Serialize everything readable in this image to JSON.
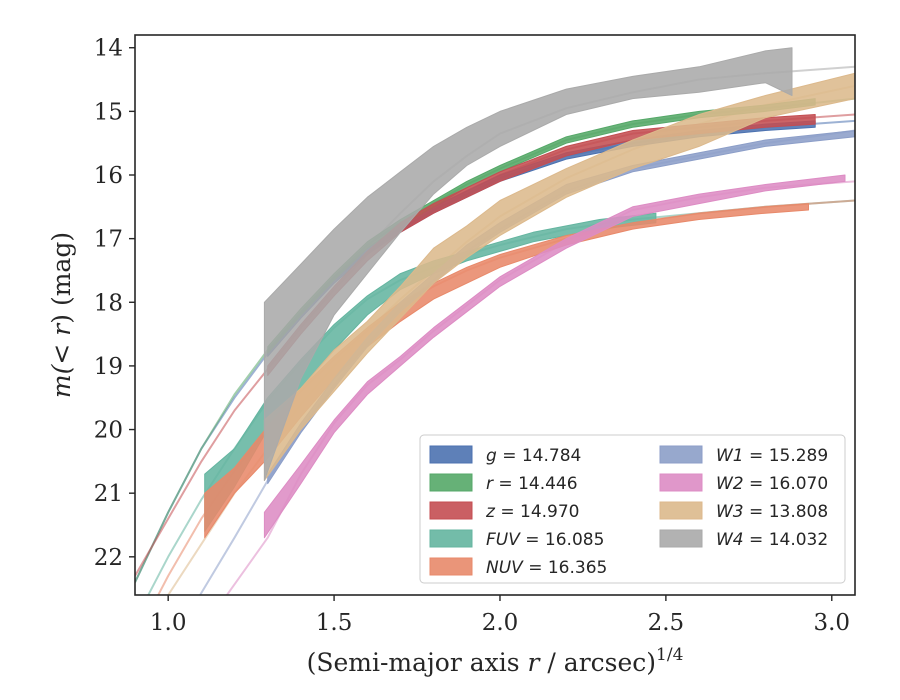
{
  "chart_data": {
    "type": "line",
    "xlabel_prefix": "(Semi-major axis",
    "xlabel_var": "r",
    "xlabel_unit": "/ arcsec)",
    "xlabel_power": "1/4",
    "ylabel_prefix": "m(",
    "ylabel_var": "< r",
    "ylabel_suffix": ") (mag)",
    "xlim": [
      0.9,
      3.07
    ],
    "ylim": [
      22.6,
      13.8
    ],
    "y_inverted": true,
    "xticks": [
      1.0,
      1.5,
      2.0,
      2.5,
      3.0
    ],
    "xtick_labels": [
      "1.0",
      "1.5",
      "2.0",
      "2.5",
      "3.0"
    ],
    "yticks": [
      14,
      15,
      16,
      17,
      18,
      19,
      20,
      21,
      22
    ],
    "ytick_labels": [
      "14",
      "15",
      "16",
      "17",
      "18",
      "19",
      "20",
      "21",
      "22"
    ],
    "grid": false,
    "legend_position": "bottom-right",
    "legend_columns": 2,
    "series": [
      {
        "name": "g",
        "total": "14.784",
        "color": "#4c72b0",
        "model_x": [
          0.9,
          1.0,
          1.1,
          1.2,
          1.3,
          1.4,
          1.5,
          1.6,
          1.7,
          1.8,
          1.9,
          2.0,
          2.2,
          2.4,
          2.6,
          2.8,
          3.07
        ],
        "model_y": [
          22.4,
          21.3,
          20.3,
          19.5,
          18.8,
          18.2,
          17.65,
          17.2,
          16.85,
          16.55,
          16.3,
          16.05,
          15.7,
          15.5,
          15.35,
          15.25,
          15.15
        ],
        "band_x": [
          1.3,
          1.4,
          1.5,
          1.6,
          1.7,
          1.8,
          1.9,
          2.0,
          2.2,
          2.4,
          2.6,
          2.8,
          2.95
        ],
        "band_low": [
          18.75,
          18.15,
          17.6,
          17.15,
          16.8,
          16.5,
          16.25,
          16.0,
          15.65,
          15.45,
          15.3,
          15.2,
          15.15
        ],
        "band_high": [
          18.85,
          18.25,
          17.7,
          17.25,
          16.9,
          16.6,
          16.35,
          16.1,
          15.75,
          15.55,
          15.4,
          15.3,
          15.25
        ]
      },
      {
        "name": "r",
        "total": "14.446",
        "color": "#55a868",
        "model_x": [
          0.9,
          1.0,
          1.1,
          1.2,
          1.3,
          1.4,
          1.5,
          1.6,
          1.7,
          1.8,
          1.9,
          2.0,
          2.2,
          2.4,
          2.6,
          2.8,
          3.07
        ],
        "model_y": [
          22.4,
          21.3,
          20.3,
          19.45,
          18.75,
          18.15,
          17.6,
          17.1,
          16.75,
          16.45,
          16.15,
          15.9,
          15.45,
          15.2,
          15.05,
          14.95,
          14.8
        ],
        "band_x": [
          1.3,
          1.4,
          1.5,
          1.6,
          1.7,
          1.8,
          1.9,
          2.0,
          2.2,
          2.4,
          2.6,
          2.8,
          2.95
        ],
        "band_low": [
          18.7,
          18.1,
          17.55,
          17.05,
          16.7,
          16.4,
          16.1,
          15.85,
          15.4,
          15.15,
          15.0,
          14.9,
          14.8
        ],
        "band_high": [
          18.8,
          18.2,
          17.65,
          17.15,
          16.8,
          16.5,
          16.2,
          15.95,
          15.5,
          15.25,
          15.1,
          15.0,
          14.9
        ]
      },
      {
        "name": "z",
        "total": "14.970",
        "color": "#c44e52",
        "model_x": [
          0.9,
          1.0,
          1.1,
          1.2,
          1.3,
          1.4,
          1.5,
          1.6,
          1.7,
          1.8,
          1.9,
          2.0,
          2.2,
          2.4,
          2.6,
          2.8,
          3.07
        ],
        "model_y": [
          22.3,
          21.4,
          20.5,
          19.7,
          19.05,
          18.4,
          17.8,
          17.25,
          16.8,
          16.5,
          16.25,
          16.0,
          15.6,
          15.35,
          15.25,
          15.15,
          15.05
        ],
        "band_x": [
          1.3,
          1.4,
          1.5,
          1.6,
          1.7,
          1.8,
          1.9,
          2.0,
          2.2,
          2.4,
          2.6,
          2.8,
          2.95
        ],
        "band_low": [
          19.0,
          18.35,
          17.75,
          17.2,
          16.75,
          16.45,
          16.2,
          15.95,
          15.55,
          15.3,
          15.2,
          15.1,
          15.05
        ],
        "band_high": [
          19.15,
          18.5,
          17.9,
          17.35,
          16.9,
          16.6,
          16.35,
          16.1,
          15.7,
          15.45,
          15.35,
          15.25,
          15.2
        ]
      },
      {
        "name": "FUV",
        "total": "16.085",
        "color": "#64b5a0",
        "model_x": [
          0.9,
          1.0,
          1.1,
          1.2,
          1.3,
          1.4,
          1.5,
          1.6,
          1.7,
          1.8,
          1.9,
          2.0,
          2.2,
          2.4,
          2.6,
          2.8,
          3.07
        ],
        "model_y": [
          23.0,
          22.0,
          21.1,
          20.3,
          19.55,
          18.95,
          18.4,
          17.95,
          17.65,
          17.45,
          17.25,
          17.1,
          16.85,
          16.7,
          16.6,
          16.5,
          16.4
        ],
        "band_x": [
          1.11,
          1.2,
          1.3,
          1.4,
          1.5,
          1.6,
          1.7,
          1.8,
          1.9,
          2.0,
          2.1,
          2.2,
          2.3,
          2.47
        ],
        "band_low": [
          20.7,
          20.3,
          19.5,
          18.9,
          18.35,
          17.9,
          17.55,
          17.35,
          17.2,
          17.05,
          16.9,
          16.8,
          16.7,
          16.6
        ],
        "band_high": [
          21.6,
          20.9,
          20.0,
          19.35,
          18.75,
          18.2,
          17.8,
          17.55,
          17.35,
          17.2,
          17.05,
          16.95,
          16.85,
          16.75
        ]
      },
      {
        "name": "NUV",
        "total": "16.365",
        "color": "#e8896a",
        "model_x": [
          0.9,
          1.0,
          1.1,
          1.2,
          1.3,
          1.4,
          1.5,
          1.6,
          1.7,
          1.8,
          1.9,
          2.0,
          2.2,
          2.4,
          2.6,
          2.8,
          3.07
        ],
        "model_y": [
          23.3,
          22.3,
          21.4,
          20.65,
          20.0,
          19.4,
          18.9,
          18.45,
          18.05,
          17.75,
          17.5,
          17.3,
          17.0,
          16.75,
          16.6,
          16.5,
          16.4
        ],
        "band_x": [
          1.11,
          1.2,
          1.3,
          1.4,
          1.5,
          1.6,
          1.7,
          1.8,
          1.9,
          2.0,
          2.2,
          2.4,
          2.6,
          2.8,
          2.93
        ],
        "band_low": [
          21.0,
          20.6,
          19.95,
          19.35,
          18.85,
          18.4,
          18.0,
          17.7,
          17.45,
          17.25,
          16.95,
          16.75,
          16.6,
          16.5,
          16.45
        ],
        "band_high": [
          21.7,
          21.0,
          20.45,
          19.8,
          19.2,
          18.7,
          18.3,
          17.95,
          17.7,
          17.45,
          17.1,
          16.85,
          16.7,
          16.6,
          16.55
        ]
      },
      {
        "name": "W1",
        "total": "15.289",
        "color": "#8c9ec8",
        "model_x": [
          1.05,
          1.2,
          1.3,
          1.4,
          1.5,
          1.6,
          1.7,
          1.8,
          1.9,
          2.0,
          2.2,
          2.4,
          2.6,
          2.8,
          3.07
        ],
        "model_y": [
          23.0,
          21.7,
          20.8,
          20.0,
          19.3,
          18.65,
          18.1,
          17.65,
          17.2,
          16.85,
          16.25,
          15.9,
          15.7,
          15.5,
          15.3
        ],
        "band_x": [
          1.3,
          1.4,
          1.5,
          1.6,
          1.7,
          1.8,
          1.9,
          2.0,
          2.2,
          2.4,
          2.6,
          2.8,
          3.07
        ],
        "band_low": [
          20.7,
          19.9,
          19.2,
          18.55,
          18.0,
          17.55,
          17.1,
          16.75,
          16.15,
          15.85,
          15.65,
          15.45,
          15.3
        ],
        "band_high": [
          20.85,
          20.05,
          19.35,
          18.7,
          18.15,
          17.7,
          17.25,
          16.9,
          16.3,
          15.95,
          15.75,
          15.55,
          15.4
        ]
      },
      {
        "name": "W2",
        "total": "16.070",
        "color": "#dd8cc4",
        "model_x": [
          1.15,
          1.3,
          1.4,
          1.5,
          1.6,
          1.7,
          1.8,
          1.9,
          2.0,
          2.2,
          2.4,
          2.6,
          2.8,
          3.07
        ],
        "model_y": [
          22.8,
          21.7,
          20.7,
          19.9,
          19.3,
          18.9,
          18.45,
          18.05,
          17.65,
          17.05,
          16.55,
          16.35,
          16.2,
          16.1
        ],
        "band_x": [
          1.29,
          1.4,
          1.5,
          1.6,
          1.7,
          1.8,
          1.9,
          2.0,
          2.2,
          2.4,
          2.6,
          2.8,
          3.04
        ],
        "band_low": [
          21.3,
          20.55,
          19.85,
          19.25,
          18.85,
          18.4,
          18.0,
          17.6,
          17.0,
          16.5,
          16.3,
          16.15,
          16.0
        ],
        "band_high": [
          21.7,
          20.85,
          20.05,
          19.45,
          19.0,
          18.55,
          18.15,
          17.75,
          17.15,
          16.65,
          16.45,
          16.25,
          16.1
        ]
      },
      {
        "name": "W3",
        "total": "13.808",
        "color": "#dcb98c",
        "model_x": [
          0.95,
          1.1,
          1.2,
          1.3,
          1.4,
          1.5,
          1.6,
          1.7,
          1.8,
          1.9,
          2.0,
          2.2,
          2.4,
          2.6,
          2.8,
          3.07
        ],
        "model_y": [
          23.0,
          21.8,
          21.0,
          20.3,
          19.6,
          19.0,
          18.45,
          17.95,
          17.5,
          17.05,
          16.65,
          16.05,
          15.6,
          15.2,
          14.9,
          14.6
        ],
        "band_x": [
          1.29,
          1.4,
          1.5,
          1.6,
          1.7,
          1.8,
          1.9,
          2.0,
          2.2,
          2.4,
          2.6,
          2.8,
          3.07
        ],
        "band_low": [
          19.85,
          19.35,
          18.75,
          18.3,
          17.75,
          17.15,
          16.8,
          16.4,
          15.9,
          15.45,
          15.05,
          14.75,
          14.4
        ],
        "band_high": [
          20.8,
          20.0,
          19.4,
          18.8,
          18.25,
          17.7,
          17.3,
          16.95,
          16.35,
          15.9,
          15.55,
          15.1,
          14.8
        ]
      },
      {
        "name": "W4",
        "total": "14.032",
        "color": "#aaaaaa",
        "model_x": [
          1.55,
          1.7,
          1.8,
          1.9,
          2.0,
          2.2,
          2.4,
          2.6,
          2.8,
          3.07
        ],
        "model_y": [
          17.4,
          16.6,
          16.1,
          15.7,
          15.35,
          14.95,
          14.7,
          14.5,
          14.4,
          14.3
        ],
        "band_x": [
          1.29,
          1.4,
          1.5,
          1.6,
          1.7,
          1.8,
          1.9,
          2.0,
          2.2,
          2.4,
          2.6,
          2.8,
          2.88
        ],
        "band_low": [
          18.0,
          17.4,
          16.85,
          16.35,
          15.95,
          15.55,
          15.25,
          15.0,
          14.65,
          14.45,
          14.3,
          14.05,
          14.0
        ],
        "band_high": [
          20.8,
          19.2,
          18.2,
          17.55,
          16.9,
          16.3,
          15.85,
          15.55,
          15.05,
          14.8,
          14.7,
          14.55,
          14.75
        ]
      }
    ]
  }
}
